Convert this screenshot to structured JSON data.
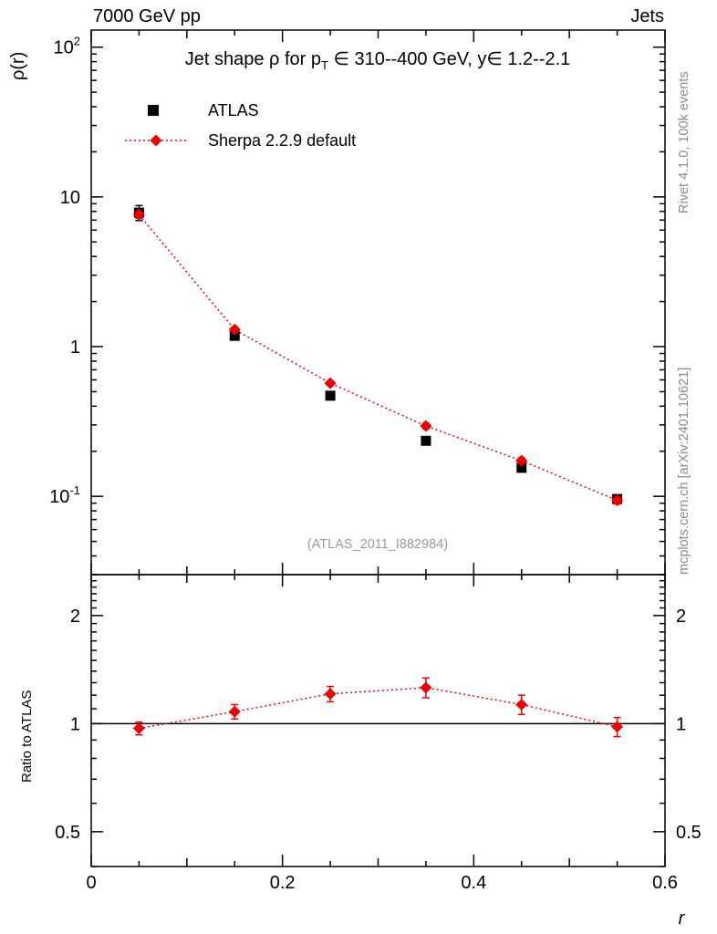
{
  "header": {
    "left": "7000 GeV pp",
    "right": "Jets"
  },
  "side_notes": {
    "top_right": "Rivet 4.1.0, 100k events",
    "bottom_right": "mcplots.cern.ch [arXiv:2401.10621]"
  },
  "main_panel": {
    "ylabel": "ρ(r)",
    "title_pre": "Jet shape ρ for p",
    "title_sub": "T",
    "title_post": " ∈ 310--400 GeV, y∈ 1.2--2.1",
    "watermark": "(ATLAS_2011_I882984)"
  },
  "ratio_panel": {
    "ylabel": "Ratio to ATLAS"
  },
  "x_axis": {
    "label": "r"
  },
  "colors": {
    "series_red": "#ee0000",
    "series_black": "#000000",
    "watermark_gray": "#9a9a9a",
    "side_note_gray": "#8a8a8a"
  },
  "chart_data": {
    "type": "line",
    "title": "Jet shape ρ for p_T ∈ 310--400 GeV, y ∈ 1.2--2.1",
    "xlabel": "r",
    "x": [
      0.05,
      0.15,
      0.25,
      0.35,
      0.45,
      0.55
    ],
    "xlim": [
      0,
      0.6
    ],
    "xticks": [
      {
        "v": 0,
        "label": "0"
      },
      {
        "v": 0.2,
        "label": "0.2"
      },
      {
        "v": 0.4,
        "label": "0.4"
      },
      {
        "v": 0.6,
        "label": "0.6"
      }
    ],
    "main": {
      "ylabel": "ρ(r)",
      "yscale": "log",
      "ylim": [
        0.03,
        130
      ],
      "grid": false,
      "legend_position": "top-left-inside",
      "yticks": [
        {
          "v": 100,
          "base": "10",
          "exp": "2"
        },
        {
          "v": 10,
          "label": "10"
        },
        {
          "v": 1,
          "label": "1"
        },
        {
          "v": 0.1,
          "base": "10",
          "exp": "-1"
        }
      ],
      "series": [
        {
          "name": "ATLAS",
          "marker": "square",
          "color": "#000000",
          "line": "none",
          "values": [
            7.85,
            1.18,
            0.47,
            0.235,
            0.155,
            0.096
          ],
          "errors": [
            0.9,
            0.06,
            0.025,
            0.012,
            0.008,
            0.005
          ]
        },
        {
          "name": "Sherpa 2.2.9 default",
          "marker": "diamond",
          "color": "#ee0000",
          "line": "dotted",
          "values": [
            7.6,
            1.3,
            0.57,
            0.295,
            0.173,
            0.094
          ],
          "errors": [
            0.4,
            0.05,
            0.02,
            0.012,
            0.008,
            0.005
          ]
        }
      ]
    },
    "ratio": {
      "ylabel": "Ratio to ATLAS",
      "yscale": "log",
      "ylim": [
        0.4,
        2.6
      ],
      "reference_line": 1,
      "yticks": [
        {
          "v": 2,
          "label": "2"
        },
        {
          "v": 1,
          "label": "1"
        },
        {
          "v": 0.5,
          "label": "0.5"
        }
      ],
      "series": [
        {
          "name": "Sherpa 2.2.9 default / ATLAS",
          "marker": "diamond",
          "color": "#ee0000",
          "line": "dotted",
          "values": [
            0.97,
            1.08,
            1.21,
            1.26,
            1.13,
            0.98
          ],
          "errors": [
            0.04,
            0.05,
            0.06,
            0.08,
            0.07,
            0.06
          ]
        }
      ]
    }
  }
}
